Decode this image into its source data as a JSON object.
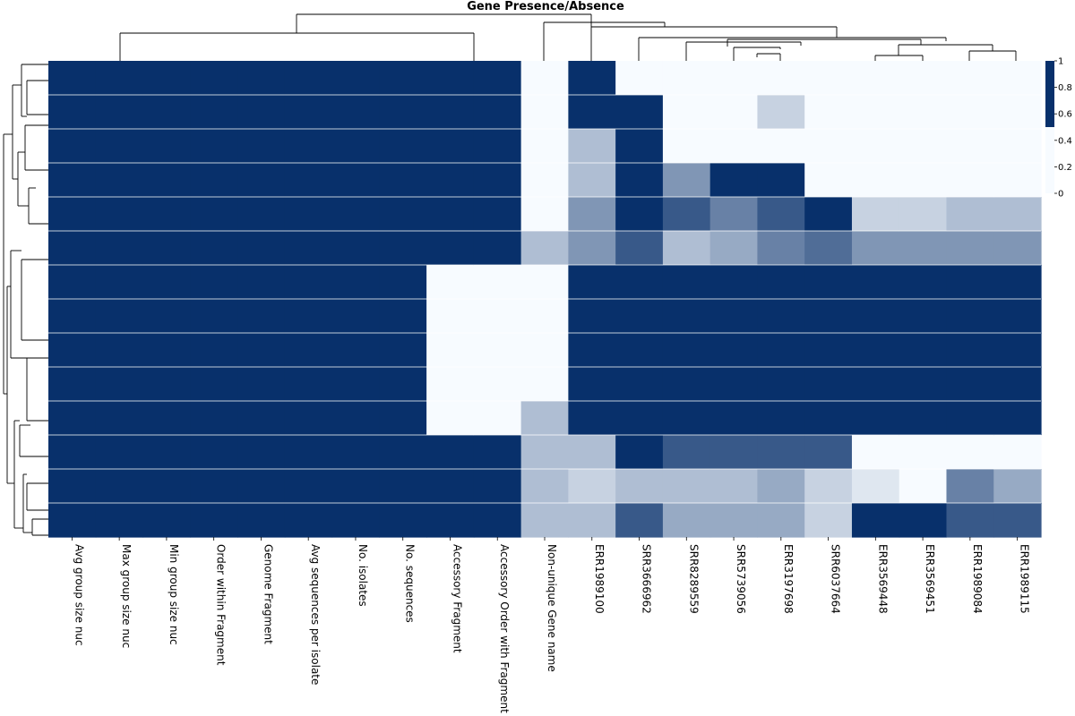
{
  "chart_data": {
    "type": "heatmap",
    "title": "Gene Presence/Absence",
    "colormap": {
      "low": "#f7fbff",
      "high": "#08306b"
    },
    "colorbar": {
      "ticks": [
        "0",
        "0.2",
        "0.4",
        "0.6",
        "0.8",
        "1"
      ],
      "range": [
        0,
        1
      ]
    },
    "columns": [
      "Avg group size nuc",
      "Max group size nuc",
      "Min group size nuc",
      "Order within Fragment",
      "Genome Fragment",
      "Avg sequences per isolate",
      "No. isolates",
      "No. sequences",
      "Accessory Fragment",
      "Accessory Order with Fragment",
      "Non-unique Gene name",
      "ERR1989100",
      "SRR3666962",
      "SRR8289559",
      "SRR5739056",
      "ERR3197698",
      "SRR6037664",
      "ERR3569448",
      "ERR3569451",
      "ERR1989084",
      "ERR1989115"
    ],
    "column_values": [
      [
        1,
        1,
        1,
        1,
        1,
        1,
        1,
        1,
        1,
        1,
        1,
        1,
        1,
        1
      ],
      [
        1,
        1,
        1,
        1,
        1,
        1,
        1,
        1,
        1,
        1,
        1,
        1,
        1,
        1
      ],
      [
        1,
        1,
        1,
        1,
        1,
        1,
        1,
        1,
        1,
        1,
        1,
        1,
        1,
        1
      ],
      [
        1,
        1,
        1,
        1,
        1,
        1,
        1,
        1,
        1,
        1,
        1,
        1,
        1,
        1
      ],
      [
        1,
        1,
        1,
        1,
        1,
        1,
        1,
        1,
        1,
        1,
        1,
        1,
        1,
        1
      ],
      [
        1,
        1,
        1,
        1,
        1,
        1,
        1,
        1,
        1,
        1,
        1,
        1,
        1,
        1
      ],
      [
        1,
        1,
        1,
        1,
        1,
        1,
        1,
        1,
        1,
        1,
        1,
        1,
        1,
        1
      ],
      [
        1,
        1,
        1,
        1,
        1,
        1,
        1,
        1,
        1,
        1,
        1,
        1,
        1,
        1
      ],
      [
        1,
        1,
        1,
        1,
        1,
        1,
        0,
        0,
        0,
        0,
        0,
        1,
        1,
        1
      ],
      [
        1,
        1,
        1,
        1,
        1,
        1,
        0,
        0,
        0,
        0,
        0,
        1,
        1,
        1
      ],
      [
        0,
        0,
        0,
        0,
        0,
        0.3,
        0,
        0,
        0,
        0,
        0.3,
        0.3,
        0.3,
        0.3
      ],
      [
        1,
        1,
        0.3,
        0.3,
        0.5,
        0.5,
        1,
        1,
        1,
        1,
        1,
        0.3,
        0.2,
        0.3
      ],
      [
        0,
        1,
        1,
        1,
        1,
        0.8,
        1,
        1,
        1,
        1,
        1,
        1,
        0.3,
        0.8
      ],
      [
        0,
        0,
        0,
        0.5,
        0.8,
        0.3,
        1,
        1,
        1,
        1,
        1,
        0.8,
        0.3,
        0.4
      ],
      [
        0,
        0,
        0,
        1,
        0.6,
        0.4,
        1,
        1,
        1,
        1,
        1,
        0.8,
        0.3,
        0.4
      ],
      [
        0,
        0.2,
        0,
        1,
        0.8,
        0.6,
        1,
        1,
        1,
        1,
        1,
        0.8,
        0.4,
        0.4
      ],
      [
        0,
        0,
        0,
        0,
        1,
        0.7,
        1,
        1,
        1,
        1,
        1,
        0.8,
        0.2,
        0.2
      ],
      [
        0,
        0,
        0,
        0,
        0.2,
        0.5,
        1,
        1,
        1,
        1,
        1,
        0,
        0.1,
        1
      ],
      [
        0,
        0,
        0,
        0,
        0.2,
        0.5,
        1,
        1,
        1,
        1,
        1,
        0,
        0,
        1
      ],
      [
        0,
        0,
        0,
        0,
        0.3,
        0.5,
        1,
        1,
        1,
        1,
        1,
        0,
        0.6,
        0.8
      ],
      [
        0,
        0,
        0,
        0,
        0.3,
        0.5,
        1,
        1,
        1,
        1,
        1,
        0,
        0.4,
        0.8
      ]
    ]
  }
}
